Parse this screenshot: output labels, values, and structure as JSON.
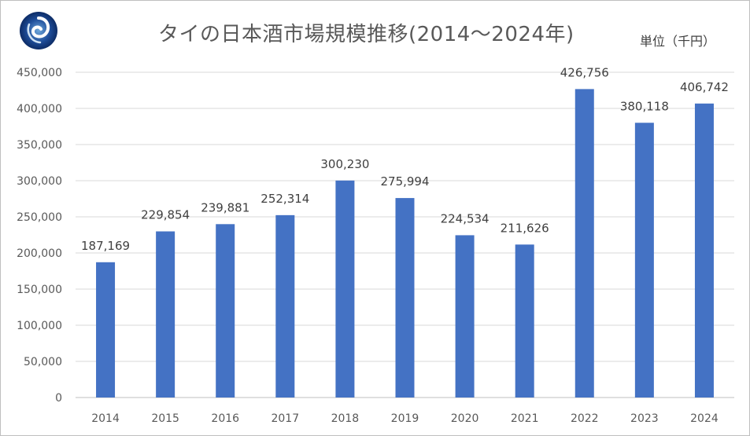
{
  "header": {
    "title": "タイの日本酒市場規模推移(2014～2024年)",
    "unit_label": "単位（千円）",
    "logo_icon": "swirl-logo-icon"
  },
  "chart_data": {
    "type": "bar",
    "title": "タイの日本酒市場規模推移(2014～2024年)",
    "categories": [
      "2014",
      "2015",
      "2016",
      "2017",
      "2018",
      "2019",
      "2020",
      "2021",
      "2022",
      "2023",
      "2024"
    ],
    "values": [
      187169,
      229854,
      239881,
      252314,
      300230,
      275994,
      224534,
      211626,
      426756,
      380118,
      406742
    ],
    "data_labels": [
      "187,169",
      "229,854",
      "239,881",
      "252,314",
      "300,230",
      "275,994",
      "224,534",
      "211,626",
      "426,756",
      "380,118",
      "406,742"
    ],
    "yticks": [
      0,
      50000,
      100000,
      150000,
      200000,
      250000,
      300000,
      350000,
      400000,
      450000
    ],
    "ytick_labels": [
      "0",
      "50,000",
      "100,000",
      "150,000",
      "200,000",
      "250,000",
      "300,000",
      "350,000",
      "400,000",
      "450,000"
    ],
    "ylim": [
      0,
      450000
    ],
    "xlabel": "",
    "ylabel": "",
    "grid": true,
    "legend": "none",
    "bar_color": "#4472C4",
    "grid_color": "#d9d9d9"
  }
}
